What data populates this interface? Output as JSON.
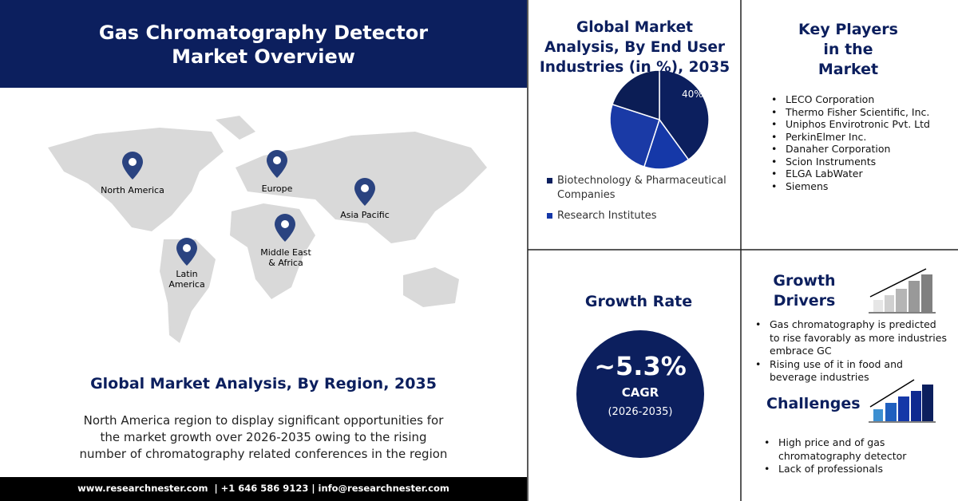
{
  "header": {
    "title": "Gas Chromatography Detector Market Overview"
  },
  "map": {
    "regions": [
      "North America",
      "Europe",
      "Asia Pacific",
      "Middle East & Africa",
      "Latin America"
    ]
  },
  "region_section": {
    "title": "Global Market Analysis, By Region, 2035",
    "text": "North America region to display significant opportunities for the market growth over 2026-2035  owing to the rising number of chromatography related conferences in the region"
  },
  "footer": {
    "contact": "www.researchnester.com  | +1 646 586 9123 | info@researchnester.com"
  },
  "chart_data": {
    "type": "pie",
    "title": "Global Market Analysis, By End User Industries (in %), 2035",
    "categories": [
      "Biotechnology & Pharmaceutical Companies",
      "Research Institutes",
      null,
      null
    ],
    "values": [
      40,
      15,
      25,
      20
    ],
    "value_labels": [
      "40%",
      null,
      null,
      null
    ],
    "colors": [
      "#0c1f5e",
      "#1538a8",
      "#1a3aa6",
      "#0b1d55"
    ]
  },
  "key_players": {
    "title": "Key Players in the Market",
    "items": [
      "LECO Corporation",
      "Thermo Fisher Scientific, Inc.",
      "Uniphos Envirotronic Pvt. Ltd",
      "PerkinElmer Inc.",
      "Danaher  Corporation",
      "Scion Instruments",
      "ELGA LabWater",
      "Siemens"
    ]
  },
  "growth_rate": {
    "title": "Growth Rate",
    "value": "~5.3%",
    "label": "CAGR",
    "period": "(2026-2035)"
  },
  "growth_drivers": {
    "title": "Growth Drivers",
    "items": [
      "Gas chromatography  is predicted to rise favorably as more industries embrace GC",
      "Rising use of it in food and beverage industries"
    ]
  },
  "challenges": {
    "title": "Challenges",
    "items": [
      "High price  and of gas chromatography  detector",
      "Lack of professionals"
    ]
  }
}
